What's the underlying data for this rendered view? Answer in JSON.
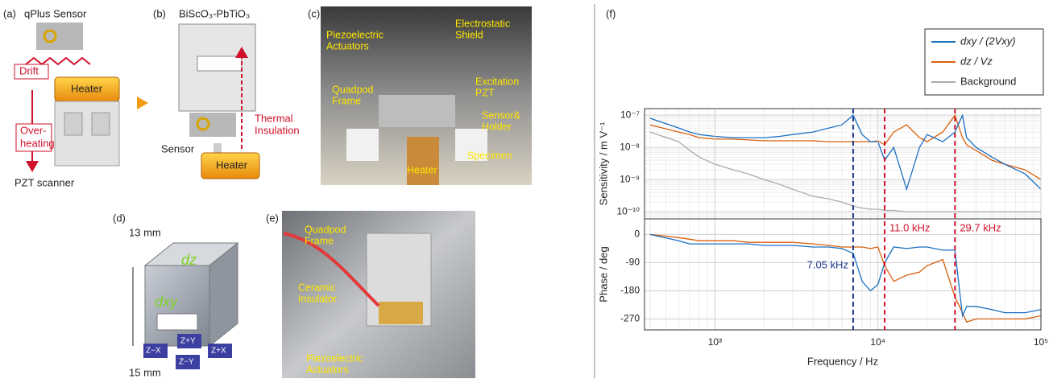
{
  "panels": {
    "a": {
      "label": "(a)",
      "sensor": "qPlus Sensor",
      "drift": "Drift",
      "heater": "Heater",
      "overheating": [
        "Over-",
        "heating"
      ],
      "scanner": "PZT scanner"
    },
    "b": {
      "label": "(b)",
      "material": "BiScO₃-PbTiO₃",
      "insulation": [
        "Thermal",
        "Insulation"
      ],
      "sensor": "Sensor",
      "heater": "Heater"
    },
    "c": {
      "label": "(c)",
      "callouts": [
        [
          "Piezoelectric",
          "Actuators"
        ],
        [
          "Electrostatic",
          "Shield"
        ],
        [
          "Quadpod",
          "Frame"
        ],
        [
          "Excitation",
          "PZT"
        ],
        [
          "Sensor&",
          "Holder"
        ],
        [
          "Specimen"
        ],
        [
          "Heater"
        ]
      ]
    },
    "d": {
      "label": "(d)",
      "width": "13 mm",
      "height": "15 mm",
      "dz": "dz",
      "dxy": "dxy",
      "electrodes": [
        "Z+Y",
        "Z−X",
        "Z+X",
        "Z−Y"
      ]
    },
    "e": {
      "label": "(e)",
      "callouts": [
        [
          "Quadpod",
          "Frame"
        ],
        [
          "Ceramic",
          "Insulator"
        ],
        [
          "Piezoelectric",
          "Actuators"
        ]
      ]
    },
    "f": {
      "label": "(f)"
    }
  },
  "chart_data": [
    {
      "type": "line",
      "ylabel": "Sensitivity / m V⁻¹",
      "xlog": true,
      "ylog": true,
      "grid": true,
      "legend": "upper right",
      "xlim": [
        370,
        100000
      ],
      "ylim": [
        6e-11,
        1.6e-07
      ],
      "yticks": [
        {
          "value": 1e-07,
          "label": "10⁻⁷"
        },
        {
          "value": 1e-08,
          "label": "10⁻⁸"
        },
        {
          "value": 1e-09,
          "label": "10⁻⁹"
        },
        {
          "value": 1e-10,
          "label": "10⁻¹⁰"
        }
      ],
      "x": [
        400,
        600,
        700,
        800,
        1000,
        1300,
        1600,
        2000,
        2500,
        3000,
        4000,
        5000,
        6000,
        7050,
        8000,
        9000,
        10000,
        11000,
        12500,
        15000,
        18000,
        20000,
        25000,
        29700,
        33000,
        35000,
        40000,
        50000,
        60000,
        80000,
        100000
      ],
      "series": [
        {
          "name": "dxy / (2Vxy)",
          "color": "#1a6fc1",
          "values": [
            8e-08,
            4e-08,
            3e-08,
            2.5e-08,
            2.2e-08,
            2e-08,
            2e-08,
            2e-08,
            2.2e-08,
            2.5e-08,
            3e-08,
            4e-08,
            5e-08,
            1e-07,
            2.5e-08,
            1.5e-08,
            1.5e-08,
            4e-09,
            1e-08,
            5e-10,
            1e-08,
            2.5e-08,
            1.5e-08,
            3e-08,
            1e-07,
            2e-08,
            1e-08,
            5e-09,
            3e-09,
            1.5e-09,
            5e-10
          ]
        },
        {
          "name": "dz / Vz",
          "color": "#d95f0e",
          "values": [
            5e-08,
            3e-08,
            2.5e-08,
            2e-08,
            1.8e-08,
            1.8e-08,
            1.7e-08,
            1.6e-08,
            1.6e-08,
            1.6e-08,
            1.6e-08,
            1.5e-08,
            1.5e-08,
            1.5e-08,
            1.5e-08,
            1.5e-08,
            1.6e-08,
            1.2e-08,
            3e-08,
            5e-08,
            2e-08,
            1.5e-08,
            3e-08,
            1e-07,
            2e-08,
            1.2e-08,
            8e-09,
            4e-09,
            3e-09,
            2e-09,
            1e-09
          ]
        },
        {
          "name": "Background",
          "color": "#aaaaaa",
          "values": [
            3e-08,
            1.5e-08,
            8e-09,
            5e-09,
            3e-09,
            2e-09,
            1.5e-09,
            1e-09,
            7e-10,
            5e-10,
            3e-10,
            2.5e-10,
            2e-10,
            1.5e-10,
            1.3e-10,
            1.2e-10,
            1.2e-10,
            1.1e-10,
            1.1e-10,
            1e-10,
            1e-10,
            1e-10,
            1e-10,
            1e-10,
            1e-10,
            1e-10,
            1e-10,
            1e-10,
            1e-10,
            1e-10,
            1e-10
          ]
        }
      ]
    },
    {
      "type": "line",
      "ylabel": "Phase / deg",
      "xlabel": "Frequency / Hz",
      "xlog": true,
      "ylog": false,
      "grid": true,
      "xlim": [
        370,
        100000
      ],
      "ylim": [
        -305,
        50
      ],
      "xticks": [
        {
          "value": 1000,
          "label": "10³"
        },
        {
          "value": 10000,
          "label": "10⁴"
        },
        {
          "value": 100000,
          "label": "10⁵"
        }
      ],
      "yticks": [
        0,
        -90,
        -180,
        -270
      ],
      "x": [
        400,
        600,
        700,
        800,
        1000,
        1300,
        1600,
        2000,
        2500,
        3000,
        4000,
        5000,
        6000,
        7050,
        8000,
        9000,
        10000,
        11000,
        12500,
        15000,
        18000,
        20000,
        25000,
        29700,
        33000,
        35000,
        40000,
        50000,
        60000,
        80000,
        100000
      ],
      "series": [
        {
          "name": "dxy / (2Vxy)",
          "color": "#1a6fc1",
          "values": [
            0,
            -20,
            -30,
            -30,
            -30,
            -30,
            -30,
            -35,
            -35,
            -35,
            -40,
            -40,
            -45,
            -60,
            -150,
            -180,
            -160,
            -90,
            -40,
            -45,
            -40,
            -40,
            -50,
            -50,
            -260,
            -230,
            -230,
            -240,
            -250,
            -250,
            -240
          ]
        },
        {
          "name": "dz / Vz",
          "color": "#d95f0e",
          "values": [
            0,
            -10,
            -15,
            -20,
            -20,
            -20,
            -25,
            -25,
            -25,
            -25,
            -30,
            -35,
            -40,
            -40,
            -40,
            -45,
            -40,
            -100,
            -150,
            -130,
            -120,
            -100,
            -80,
            -200,
            -250,
            -280,
            -270,
            -270,
            -270,
            -270,
            -260
          ]
        }
      ],
      "annotations": [
        {
          "x": 7050,
          "label": "7.05 kHz",
          "color": "#1f3a93"
        },
        {
          "x": 11000,
          "label": "11.0 kHz",
          "color": "#d0112b"
        },
        {
          "x": 29700,
          "label": "29.7 kHz",
          "color": "#d0112b"
        }
      ]
    }
  ]
}
